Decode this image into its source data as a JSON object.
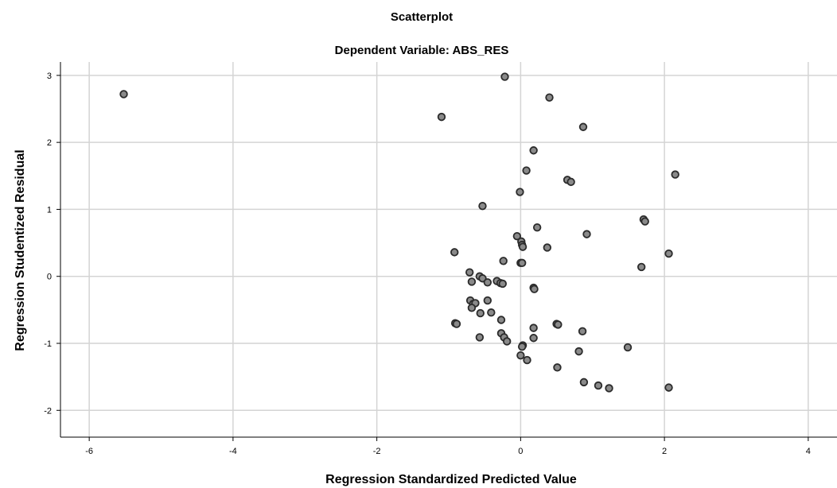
{
  "chart_data": {
    "type": "scatter",
    "title": "Scatterplot",
    "subtitle": "Dependent Variable: ABS_RES",
    "xlabel": "Regression Standardized Predicted Value",
    "ylabel": "Regression Studentized Residual",
    "xlim": [
      -6.4,
      4.4
    ],
    "ylim": [
      -2.4,
      3.2
    ],
    "xticks": [
      -6,
      -4,
      -2,
      0,
      2,
      4
    ],
    "yticks": [
      -2,
      -1,
      0,
      1,
      2,
      3
    ],
    "grid": true,
    "colors": {
      "marker_fill": "#8a8a8a",
      "marker_stroke": "#2b2b2b",
      "grid": "#d4d4d4",
      "axis": "#000000"
    },
    "points": [
      {
        "x": -5.52,
        "y": 2.72
      },
      {
        "x": -1.1,
        "y": 2.38
      },
      {
        "x": -0.22,
        "y": 2.98
      },
      {
        "x": 0.4,
        "y": 2.67
      },
      {
        "x": 0.87,
        "y": 2.23
      },
      {
        "x": 0.18,
        "y": 1.88
      },
      {
        "x": 0.08,
        "y": 1.58
      },
      {
        "x": 2.15,
        "y": 1.52
      },
      {
        "x": 0.65,
        "y": 1.44
      },
      {
        "x": 0.7,
        "y": 1.41
      },
      {
        "x": -0.01,
        "y": 1.26
      },
      {
        "x": -0.53,
        "y": 1.05
      },
      {
        "x": 1.71,
        "y": 0.85
      },
      {
        "x": 1.73,
        "y": 0.82
      },
      {
        "x": 0.23,
        "y": 0.73
      },
      {
        "x": 0.92,
        "y": 0.63
      },
      {
        "x": -0.05,
        "y": 0.6
      },
      {
        "x": 0.01,
        "y": 0.52
      },
      {
        "x": 0.02,
        "y": 0.47
      },
      {
        "x": 0.03,
        "y": 0.44
      },
      {
        "x": 0.37,
        "y": 0.43
      },
      {
        "x": -0.92,
        "y": 0.36
      },
      {
        "x": 2.06,
        "y": 0.34
      },
      {
        "x": -0.24,
        "y": 0.23
      },
      {
        "x": 0.0,
        "y": 0.2
      },
      {
        "x": 0.02,
        "y": 0.2
      },
      {
        "x": 1.68,
        "y": 0.14
      },
      {
        "x": -0.71,
        "y": 0.06
      },
      {
        "x": -0.57,
        "y": 0.0
      },
      {
        "x": -0.53,
        "y": -0.03
      },
      {
        "x": -0.68,
        "y": -0.08
      },
      {
        "x": -0.46,
        "y": -0.09
      },
      {
        "x": -0.33,
        "y": -0.07
      },
      {
        "x": -0.28,
        "y": -0.1
      },
      {
        "x": -0.25,
        "y": -0.11
      },
      {
        "x": 0.18,
        "y": -0.17
      },
      {
        "x": 0.19,
        "y": -0.19
      },
      {
        "x": -0.7,
        "y": -0.36
      },
      {
        "x": -0.46,
        "y": -0.36
      },
      {
        "x": -0.66,
        "y": -0.41
      },
      {
        "x": -0.63,
        "y": -0.4
      },
      {
        "x": -0.68,
        "y": -0.47
      },
      {
        "x": -0.41,
        "y": -0.54
      },
      {
        "x": -0.56,
        "y": -0.55
      },
      {
        "x": -0.27,
        "y": -0.65
      },
      {
        "x": -0.91,
        "y": -0.7
      },
      {
        "x": -0.89,
        "y": -0.71
      },
      {
        "x": 0.5,
        "y": -0.71
      },
      {
        "x": 0.52,
        "y": -0.72
      },
      {
        "x": 0.18,
        "y": -0.77
      },
      {
        "x": 0.86,
        "y": -0.82
      },
      {
        "x": -0.27,
        "y": -0.85
      },
      {
        "x": -0.23,
        "y": -0.91
      },
      {
        "x": -0.57,
        "y": -0.91
      },
      {
        "x": 0.18,
        "y": -0.92
      },
      {
        "x": -0.19,
        "y": -0.97
      },
      {
        "x": 0.03,
        "y": -1.03
      },
      {
        "x": 0.02,
        "y": -1.05
      },
      {
        "x": 1.49,
        "y": -1.06
      },
      {
        "x": 0.81,
        "y": -1.12
      },
      {
        "x": 0.0,
        "y": -1.18
      },
      {
        "x": 0.09,
        "y": -1.25
      },
      {
        "x": 0.51,
        "y": -1.36
      },
      {
        "x": 0.88,
        "y": -1.58
      },
      {
        "x": 1.08,
        "y": -1.63
      },
      {
        "x": 1.23,
        "y": -1.67
      },
      {
        "x": 2.06,
        "y": -1.66
      }
    ]
  }
}
